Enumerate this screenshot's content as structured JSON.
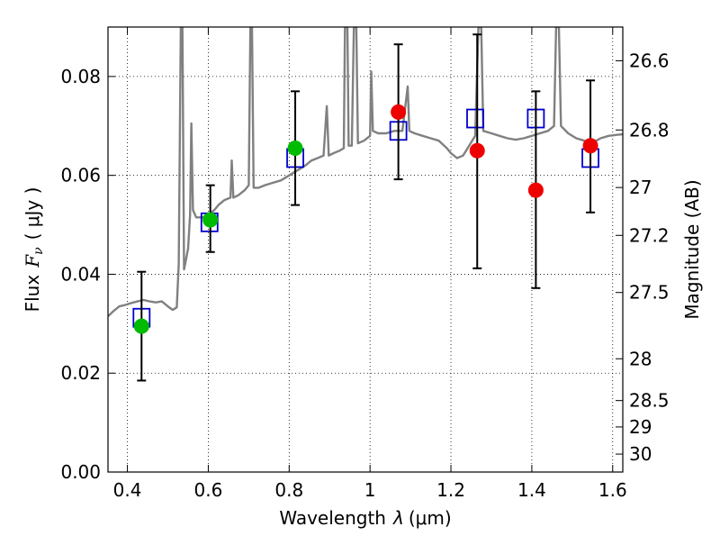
{
  "chart_data": {
    "type": "scatter",
    "xlabel": "Wavelength  λ (μm)",
    "xlabel_parts": {
      "prefix": "Wavelength",
      "symbol": "λ",
      "unit": "(μm)"
    },
    "ylabel": "Flux  Fν  ( μJy )",
    "ylabel_parts": {
      "prefix": "Flux",
      "symbol": "F",
      "subscript": "ν",
      "unit": "( μJy )"
    },
    "y2label": "Magnitude (AB)",
    "xlim": [
      0.352,
      1.625
    ],
    "ylim": [
      0.0,
      0.09
    ],
    "grid": true,
    "x_ticks": [
      {
        "value": 0.4,
        "label": "0.4"
      },
      {
        "value": 0.6,
        "label": "0.6"
      },
      {
        "value": 0.8,
        "label": "0.8"
      },
      {
        "value": 1.0,
        "label": "1"
      },
      {
        "value": 1.2,
        "label": "1.2"
      },
      {
        "value": 1.4,
        "label": "1.4"
      },
      {
        "value": 1.6,
        "label": "1.6"
      }
    ],
    "y_ticks": [
      {
        "value": 0.0,
        "label": "0.00"
      },
      {
        "value": 0.02,
        "label": "0.02"
      },
      {
        "value": 0.04,
        "label": "0.04"
      },
      {
        "value": 0.06,
        "label": "0.06"
      },
      {
        "value": 0.08,
        "label": "0.08"
      }
    ],
    "y2_ticks": [
      {
        "value": 26.6,
        "label": "26.6"
      },
      {
        "value": 26.8,
        "label": "26.8"
      },
      {
        "value": 27.0,
        "label": "27"
      },
      {
        "value": 27.2,
        "label": "27.2"
      },
      {
        "value": 27.5,
        "label": "27.5"
      },
      {
        "value": 28.0,
        "label": "28"
      },
      {
        "value": 28.5,
        "label": "28.5"
      },
      {
        "value": 29.0,
        "label": "29"
      },
      {
        "value": 30.0,
        "label": "30"
      }
    ],
    "series": [
      {
        "marker": "line",
        "color": "#808080",
        "points": [
          [
            0.352,
            0.0315
          ],
          [
            0.365,
            0.0325
          ],
          [
            0.38,
            0.0335
          ],
          [
            0.395,
            0.0338
          ],
          [
            0.41,
            0.0342
          ],
          [
            0.425,
            0.0345
          ],
          [
            0.44,
            0.0348
          ],
          [
            0.455,
            0.0345
          ],
          [
            0.47,
            0.0343
          ],
          [
            0.485,
            0.0345
          ],
          [
            0.5,
            0.0335
          ],
          [
            0.512,
            0.0328
          ],
          [
            0.522,
            0.0333
          ],
          [
            0.527,
            0.042
          ],
          [
            0.532,
            0.09
          ],
          [
            0.536,
            0.09
          ],
          [
            0.54,
            0.041
          ],
          [
            0.545,
            0.043
          ],
          [
            0.55,
            0.0452
          ],
          [
            0.555,
            0.052
          ],
          [
            0.558,
            0.0705
          ],
          [
            0.562,
            0.053
          ],
          [
            0.57,
            0.0515
          ],
          [
            0.585,
            0.0515
          ],
          [
            0.6,
            0.052
          ],
          [
            0.615,
            0.053
          ],
          [
            0.625,
            0.054
          ],
          [
            0.64,
            0.055
          ],
          [
            0.655,
            0.0555
          ],
          [
            0.658,
            0.063
          ],
          [
            0.662,
            0.0555
          ],
          [
            0.675,
            0.056
          ],
          [
            0.69,
            0.057
          ],
          [
            0.7,
            0.058
          ],
          [
            0.704,
            0.09
          ],
          [
            0.708,
            0.09
          ],
          [
            0.712,
            0.0575
          ],
          [
            0.725,
            0.0575
          ],
          [
            0.74,
            0.058
          ],
          [
            0.76,
            0.0585
          ],
          [
            0.78,
            0.059
          ],
          [
            0.8,
            0.06
          ],
          [
            0.82,
            0.061
          ],
          [
            0.84,
            0.062
          ],
          [
            0.855,
            0.063
          ],
          [
            0.87,
            0.0635
          ],
          [
            0.885,
            0.064
          ],
          [
            0.893,
            0.074
          ],
          [
            0.898,
            0.064
          ],
          [
            0.91,
            0.0645
          ],
          [
            0.925,
            0.065
          ],
          [
            0.935,
            0.0655
          ],
          [
            0.938,
            0.09
          ],
          [
            0.944,
            0.09
          ],
          [
            0.947,
            0.066
          ],
          [
            0.955,
            0.066
          ],
          [
            0.96,
            0.09
          ],
          [
            0.966,
            0.09
          ],
          [
            0.97,
            0.0665
          ],
          [
            0.985,
            0.067
          ],
          [
            1.0,
            0.068
          ],
          [
            1.003,
            0.081
          ],
          [
            1.007,
            0.069
          ],
          [
            1.02,
            0.0685
          ],
          [
            1.04,
            0.0685
          ],
          [
            1.06,
            0.069
          ],
          [
            1.08,
            0.069
          ],
          [
            1.093,
            0.078
          ],
          [
            1.097,
            0.069
          ],
          [
            1.11,
            0.0685
          ],
          [
            1.13,
            0.068
          ],
          [
            1.15,
            0.0675
          ],
          [
            1.17,
            0.067
          ],
          [
            1.19,
            0.0655
          ],
          [
            1.2,
            0.0645
          ],
          [
            1.215,
            0.0635
          ],
          [
            1.23,
            0.064
          ],
          [
            1.245,
            0.066
          ],
          [
            1.26,
            0.068
          ],
          [
            1.268,
            0.09
          ],
          [
            1.275,
            0.09
          ],
          [
            1.28,
            0.069
          ],
          [
            1.3,
            0.0685
          ],
          [
            1.32,
            0.068
          ],
          [
            1.34,
            0.0675
          ],
          [
            1.36,
            0.0672
          ],
          [
            1.38,
            0.0675
          ],
          [
            1.4,
            0.068
          ],
          [
            1.42,
            0.0685
          ],
          [
            1.44,
            0.069
          ],
          [
            1.455,
            0.07
          ],
          [
            1.46,
            0.09
          ],
          [
            1.467,
            0.09
          ],
          [
            1.472,
            0.07
          ],
          [
            1.49,
            0.0685
          ],
          [
            1.51,
            0.0675
          ],
          [
            1.53,
            0.067
          ],
          [
            1.545,
            0.0665
          ],
          [
            1.555,
            0.0668
          ],
          [
            1.57,
            0.0675
          ],
          [
            1.59,
            0.068
          ],
          [
            1.61,
            0.0682
          ],
          [
            1.625,
            0.0683
          ]
        ]
      },
      {
        "marker": "open-square",
        "color": "#0000cc",
        "points": [
          [
            0.435,
            0.0312
          ],
          [
            0.603,
            0.0505
          ],
          [
            0.815,
            0.0635
          ],
          [
            1.07,
            0.069
          ],
          [
            1.26,
            0.0715
          ],
          [
            1.41,
            0.0715
          ],
          [
            1.545,
            0.0635
          ]
        ]
      },
      {
        "marker": "filled-circle",
        "color": "#00bb00",
        "points": [
          {
            "x": 0.435,
            "y": 0.0295,
            "yerr_low": 0.0185,
            "yerr_high": 0.0405
          },
          {
            "x": 0.605,
            "y": 0.051,
            "yerr_low": 0.0445,
            "yerr_high": 0.058
          },
          {
            "x": 0.815,
            "y": 0.0655,
            "yerr_low": 0.054,
            "yerr_high": 0.077
          }
        ]
      },
      {
        "marker": "filled-circle",
        "color": "#ee0000",
        "points": [
          {
            "x": 1.07,
            "y": 0.0728,
            "yerr_low": 0.0592,
            "yerr_high": 0.0865
          },
          {
            "x": 1.265,
            "y": 0.065,
            "yerr_low": 0.0412,
            "yerr_high": 0.0885
          },
          {
            "x": 1.41,
            "y": 0.057,
            "yerr_low": 0.0372,
            "yerr_high": 0.077
          },
          {
            "x": 1.545,
            "y": 0.066,
            "yerr_low": 0.0525,
            "yerr_high": 0.0792
          }
        ]
      }
    ]
  }
}
